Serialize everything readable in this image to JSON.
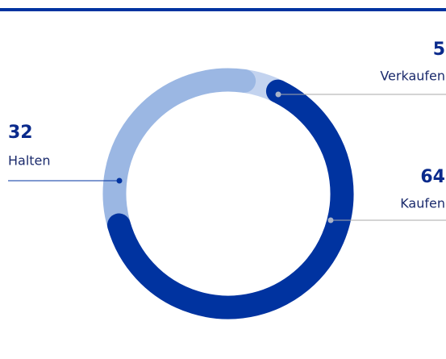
{
  "chart_data": {
    "type": "donut",
    "categories": [
      "Verkaufen",
      "Kaufen",
      "Halten"
    ],
    "values": [
      5,
      64,
      32
    ],
    "colors": [
      "#c3d3ef",
      "#0033a0",
      "#9bb7e3"
    ]
  }
}
